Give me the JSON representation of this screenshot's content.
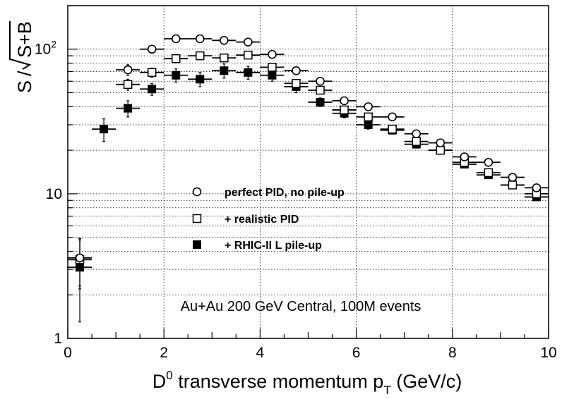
{
  "chart_data": {
    "type": "scatter",
    "x_axis": {
      "label_main": "D",
      "label_sup": "0",
      "label_mid": " transverse momentum p",
      "label_sub": "T",
      "label_tail": " (GeV/c)",
      "range": [
        0,
        10
      ],
      "ticks": [
        0,
        2,
        4,
        6,
        8,
        10
      ],
      "tick_labels": [
        "0",
        "2",
        "4",
        "6",
        "8",
        "10"
      ]
    },
    "y_axis": {
      "label_s": "S",
      "label_slash": "/",
      "label_radicand": "S+B",
      "scale": "log",
      "range": [
        1,
        200
      ],
      "major_ticks": [
        1,
        10,
        100
      ],
      "tick_labels": [
        "1",
        "10",
        "10"
      ],
      "tick_sup": [
        "",
        "",
        "2"
      ]
    },
    "grid": true,
    "annotation": "Au+Au 200 GeV Central, 100M events",
    "series": [
      {
        "name": "perfect PID, no pile-up",
        "marker": "open-circle",
        "color": "#000000",
        "points": [
          {
            "x": 0.25,
            "y": 3.6,
            "xerr": 0.25,
            "yerr": 1.3
          },
          {
            "x": 1.25,
            "y": 72,
            "xerr": 0.25,
            "yerr": 6
          },
          {
            "x": 1.75,
            "y": 100,
            "xerr": 0.25,
            "yerr": 6
          },
          {
            "x": 2.25,
            "y": 118,
            "xerr": 0.25,
            "yerr": 5
          },
          {
            "x": 2.75,
            "y": 118,
            "xerr": 0.25,
            "yerr": 5
          },
          {
            "x": 3.25,
            "y": 115,
            "xerr": 0.25,
            "yerr": 5
          },
          {
            "x": 3.75,
            "y": 112,
            "xerr": 0.25,
            "yerr": 5
          },
          {
            "x": 4.25,
            "y": 92,
            "xerr": 0.25,
            "yerr": 4
          },
          {
            "x": 4.75,
            "y": 71,
            "xerr": 0.25,
            "yerr": 3
          },
          {
            "x": 5.25,
            "y": 60,
            "xerr": 0.25,
            "yerr": 3
          },
          {
            "x": 5.75,
            "y": 44,
            "xerr": 0.25,
            "yerr": 2
          },
          {
            "x": 6.25,
            "y": 40,
            "xerr": 0.25,
            "yerr": 2
          },
          {
            "x": 6.75,
            "y": 34,
            "xerr": 0.25,
            "yerr": 1.5
          },
          {
            "x": 7.25,
            "y": 26,
            "xerr": 0.25,
            "yerr": 1
          },
          {
            "x": 7.75,
            "y": 22.5,
            "xerr": 0.25,
            "yerr": 1
          },
          {
            "x": 8.25,
            "y": 18,
            "xerr": 0.25,
            "yerr": 0.8
          },
          {
            "x": 8.75,
            "y": 16.5,
            "xerr": 0.25,
            "yerr": 0.7
          },
          {
            "x": 9.25,
            "y": 13,
            "xerr": 0.25,
            "yerr": 0.6
          },
          {
            "x": 9.75,
            "y": 11,
            "xerr": 0.25,
            "yerr": 0.5
          }
        ]
      },
      {
        "name": "+ realistic PID",
        "marker": "open-square",
        "color": "#000000",
        "points": [
          {
            "x": 0.25,
            "y": 3.5,
            "xerr": 0.25,
            "yerr": 1.3
          },
          {
            "x": 1.25,
            "y": 57,
            "xerr": 0.25,
            "yerr": 5
          },
          {
            "x": 1.75,
            "y": 69,
            "xerr": 0.25,
            "yerr": 5
          },
          {
            "x": 2.25,
            "y": 86,
            "xerr": 0.25,
            "yerr": 5
          },
          {
            "x": 2.75,
            "y": 90,
            "xerr": 0.25,
            "yerr": 5
          },
          {
            "x": 3.25,
            "y": 87,
            "xerr": 0.25,
            "yerr": 5
          },
          {
            "x": 3.75,
            "y": 91,
            "xerr": 0.25,
            "yerr": 5
          },
          {
            "x": 4.25,
            "y": 75,
            "xerr": 0.25,
            "yerr": 4
          },
          {
            "x": 4.75,
            "y": 58,
            "xerr": 0.25,
            "yerr": 3
          },
          {
            "x": 5.25,
            "y": 52,
            "xerr": 0.25,
            "yerr": 3
          },
          {
            "x": 5.75,
            "y": 38,
            "xerr": 0.25,
            "yerr": 2
          },
          {
            "x": 6.25,
            "y": 34,
            "xerr": 0.25,
            "yerr": 2
          },
          {
            "x": 6.75,
            "y": 28,
            "xerr": 0.25,
            "yerr": 1.5
          },
          {
            "x": 7.25,
            "y": 23,
            "xerr": 0.25,
            "yerr": 1
          },
          {
            "x": 7.75,
            "y": 20,
            "xerr": 0.25,
            "yerr": 1
          },
          {
            "x": 8.25,
            "y": 16.5,
            "xerr": 0.25,
            "yerr": 0.8
          },
          {
            "x": 8.75,
            "y": 14,
            "xerr": 0.25,
            "yerr": 0.7
          },
          {
            "x": 9.25,
            "y": 11.5,
            "xerr": 0.25,
            "yerr": 0.6
          },
          {
            "x": 9.75,
            "y": 10,
            "xerr": 0.25,
            "yerr": 0.5
          }
        ]
      },
      {
        "name": "+ RHIC-II L pile-up",
        "marker": "filled-square",
        "color": "#000000",
        "points": [
          {
            "x": 0.25,
            "y": 3.1,
            "xerr": 0.25,
            "yerr": 1.8
          },
          {
            "x": 0.75,
            "y": 28,
            "xerr": 0.25,
            "yerr": 5
          },
          {
            "x": 1.25,
            "y": 39,
            "xerr": 0.25,
            "yerr": 5
          },
          {
            "x": 1.75,
            "y": 53,
            "xerr": 0.25,
            "yerr": 5
          },
          {
            "x": 2.25,
            "y": 66,
            "xerr": 0.25,
            "yerr": 7
          },
          {
            "x": 2.75,
            "y": 62,
            "xerr": 0.25,
            "yerr": 7
          },
          {
            "x": 3.25,
            "y": 71,
            "xerr": 0.25,
            "yerr": 8
          },
          {
            "x": 3.75,
            "y": 69,
            "xerr": 0.25,
            "yerr": 7
          },
          {
            "x": 4.25,
            "y": 66,
            "xerr": 0.25,
            "yerr": 6
          },
          {
            "x": 4.75,
            "y": 55,
            "xerr": 0.25,
            "yerr": 5
          },
          {
            "x": 5.25,
            "y": 43,
            "xerr": 0.25,
            "yerr": 3
          },
          {
            "x": 5.75,
            "y": 36,
            "xerr": 0.25,
            "yerr": 2.5
          },
          {
            "x": 6.25,
            "y": 30,
            "xerr": 0.25,
            "yerr": 2
          },
          {
            "x": 6.75,
            "y": 27.5,
            "xerr": 0.25,
            "yerr": 1.5
          },
          {
            "x": 7.25,
            "y": 22,
            "xerr": 0.25,
            "yerr": 1
          },
          {
            "x": 7.75,
            "y": 20,
            "xerr": 0.25,
            "yerr": 1
          },
          {
            "x": 8.25,
            "y": 16,
            "xerr": 0.25,
            "yerr": 0.8
          },
          {
            "x": 8.75,
            "y": 13.5,
            "xerr": 0.25,
            "yerr": 0.7
          },
          {
            "x": 9.25,
            "y": 11.5,
            "xerr": 0.25,
            "yerr": 0.6
          },
          {
            "x": 9.75,
            "y": 9.5,
            "xerr": 0.25,
            "yerr": 0.5
          }
        ]
      }
    ],
    "legend": {
      "placement": "center",
      "entries": [
        "perfect PID, no pile-up",
        "+ realistic PID",
        "+ RHIC-II L pile-up"
      ]
    }
  }
}
